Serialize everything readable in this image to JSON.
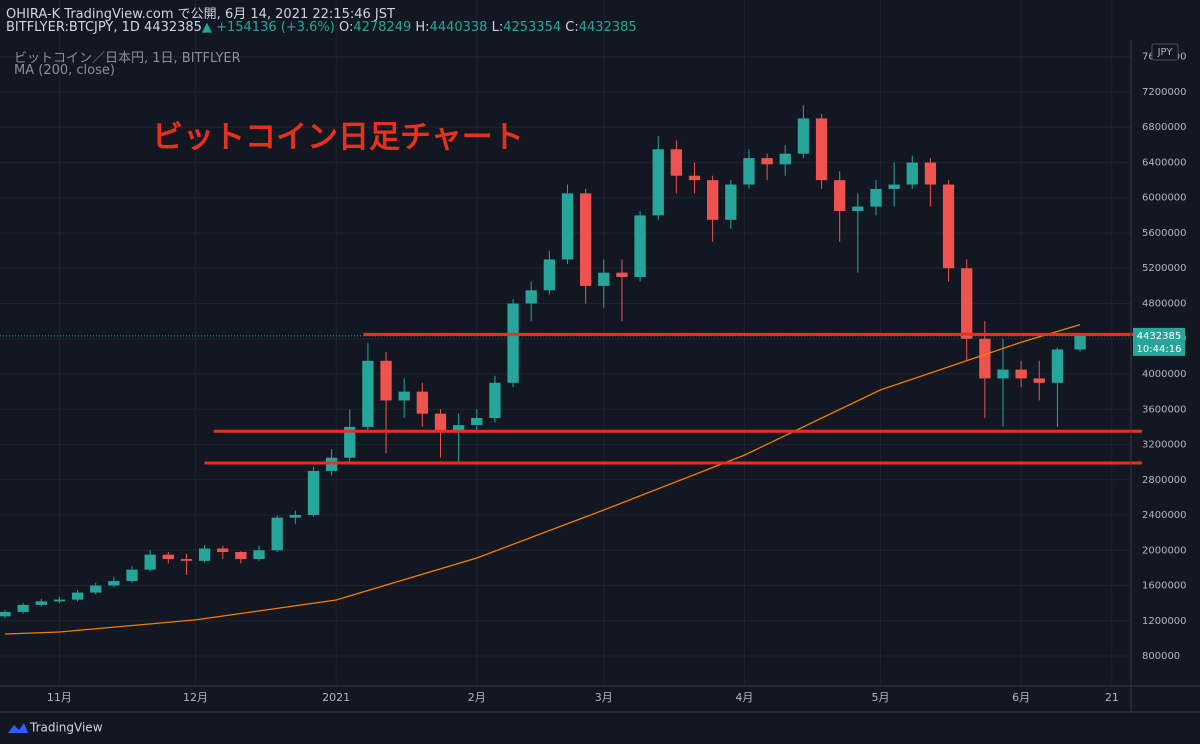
{
  "header": {
    "publisher": "OHIRA-K TradingView.com で公開, 6月 14, 2021 22:15:46 JST",
    "symbol": "BITFLYER:BTCJPY, 1D",
    "arrow": "▲",
    "change": "+154136 (+3.6%)",
    "ohlc_labels": [
      "O:",
      "H:",
      "L:",
      "C:"
    ]
  },
  "chart_data": {
    "type": "candlestick",
    "subtitle": "ビットコイン／日本円, 1日, BITFLYER",
    "annotation": "ビットコイン日足チャート",
    "currency": "JPY",
    "countdown": "10:44:16",
    "x": [
      "2020-10-20",
      "2020-10-24",
      "2020-10-28",
      "2020-11-01",
      "2020-11-05",
      "2020-11-09",
      "2020-11-13",
      "2020-11-17",
      "2020-11-21",
      "2020-11-25",
      "2020-11-29",
      "2020-12-03",
      "2020-12-07",
      "2020-12-11",
      "2020-12-15",
      "2020-12-19",
      "2020-12-23",
      "2020-12-27",
      "2020-12-31",
      "2021-01-04",
      "2021-01-08",
      "2021-01-12",
      "2021-01-16",
      "2021-01-20",
      "2021-01-24",
      "2021-01-28",
      "2021-02-01",
      "2021-02-05",
      "2021-02-09",
      "2021-02-13",
      "2021-02-17",
      "2021-02-21",
      "2021-02-25",
      "2021-03-01",
      "2021-03-05",
      "2021-03-09",
      "2021-03-13",
      "2021-03-17",
      "2021-03-21",
      "2021-03-25",
      "2021-03-29",
      "2021-04-02",
      "2021-04-06",
      "2021-04-10",
      "2021-04-14",
      "2021-04-18",
      "2021-04-22",
      "2021-04-26",
      "2021-04-30",
      "2021-05-04",
      "2021-05-08",
      "2021-05-12",
      "2021-05-16",
      "2021-05-20",
      "2021-05-24",
      "2021-05-28",
      "2021-06-01",
      "2021-06-05",
      "2021-06-09",
      "2021-06-14"
    ],
    "open": [
      1250000,
      1300000,
      1380000,
      1420000,
      1440000,
      1520000,
      1600000,
      1650000,
      1780000,
      1950000,
      1900000,
      1880000,
      2020000,
      1980000,
      1900000,
      2000000,
      2370000,
      2400000,
      2900000,
      3050000,
      3400000,
      4150000,
      3700000,
      3800000,
      3550000,
      3350000,
      3420000,
      3500000,
      3900000,
      4800000,
      4950000,
      5300000,
      6050000,
      5000000,
      5150000,
      5100000,
      5800000,
      6550000,
      6250000,
      6200000,
      5750000,
      6150000,
      6450000,
      6380000,
      6500000,
      6900000,
      6200000,
      5850000,
      5900000,
      6100000,
      6150000,
      6400000,
      6150000,
      5200000,
      4400000,
      3950000,
      4050000,
      3950000,
      3900000,
      4278249
    ],
    "high": [
      1320000,
      1400000,
      1450000,
      1470000,
      1550000,
      1630000,
      1700000,
      1820000,
      2000000,
      1980000,
      1960000,
      2060000,
      2050000,
      1990000,
      2050000,
      2400000,
      2450000,
      2950000,
      3150000,
      3600000,
      4350000,
      4250000,
      3950000,
      3900000,
      3600000,
      3550000,
      3600000,
      3980000,
      4850000,
      5050000,
      5400000,
      6150000,
      6100000,
      5300000,
      5300000,
      5850000,
      6700000,
      6650000,
      6400000,
      6250000,
      6200000,
      6550000,
      6500000,
      6600000,
      7050000,
      6950000,
      6300000,
      6050000,
      6200000,
      6400000,
      6480000,
      6450000,
      6200000,
      5300000,
      4600000,
      4400000,
      4150000,
      4150000,
      4300000,
      4440338
    ],
    "low": [
      1230000,
      1280000,
      1360000,
      1400000,
      1420000,
      1500000,
      1580000,
      1630000,
      1760000,
      1850000,
      1720000,
      1860000,
      1900000,
      1850000,
      1880000,
      1980000,
      2300000,
      2380000,
      2850000,
      3000000,
      3350000,
      3100000,
      3500000,
      3400000,
      3050000,
      3000000,
      3350000,
      3450000,
      3850000,
      4600000,
      4900000,
      5250000,
      4800000,
      4750000,
      4600000,
      5050000,
      5750000,
      6050000,
      6050000,
      5500000,
      5650000,
      6100000,
      6200000,
      6250000,
      6450000,
      6100000,
      5500000,
      5150000,
      5800000,
      5900000,
      6100000,
      5900000,
      5050000,
      4150000,
      3500000,
      3400000,
      3850000,
      3700000,
      3400000,
      4253354
    ],
    "close": [
      1300000,
      1380000,
      1420000,
      1440000,
      1520000,
      1600000,
      1650000,
      1780000,
      1950000,
      1900000,
      1880000,
      2020000,
      1980000,
      1900000,
      2000000,
      2370000,
      2400000,
      2900000,
      3050000,
      3400000,
      4150000,
      3700000,
      3800000,
      3550000,
      3350000,
      3420000,
      3500000,
      3900000,
      4800000,
      4950000,
      5300000,
      6050000,
      5000000,
      5150000,
      5100000,
      5800000,
      6550000,
      6250000,
      6200000,
      5750000,
      6150000,
      6450000,
      6380000,
      6500000,
      6900000,
      6200000,
      5850000,
      5900000,
      6100000,
      6150000,
      6400000,
      6150000,
      5200000,
      4400000,
      3950000,
      4050000,
      3950000,
      3900000,
      4278249,
      4432385
    ],
    "up_color": "#26a69a",
    "down_color": "#ef5350",
    "ma": {
      "name": "MA (200, close)",
      "color": "#f57c00",
      "x": [
        "2020-10-20",
        "2020-11-01",
        "2020-12-01",
        "2021-01-01",
        "2021-02-01",
        "2021-03-01",
        "2021-04-01",
        "2021-05-01",
        "2021-06-01",
        "2021-06-14"
      ],
      "values": [
        1050000,
        1072000,
        1210000,
        1435000,
        1912000,
        2457000,
        3080000,
        3820000,
        4360000,
        4560000
      ]
    },
    "hlines": [
      {
        "value": 4450000,
        "from": "2021-01-07"
      },
      {
        "value": 3350000,
        "from": "2020-12-05"
      },
      {
        "value": 2990000,
        "from": "2020-12-03"
      }
    ],
    "hline_color": "#e8301f",
    "xlim": [
      "2020-10-20",
      "2021-06-25"
    ],
    "xticks": [
      {
        "value": "2020-11-01",
        "label": "11月"
      },
      {
        "value": "2020-12-01",
        "label": "12月"
      },
      {
        "value": "2021-01-01",
        "label": "2021"
      },
      {
        "value": "2021-02-01",
        "label": "2月"
      },
      {
        "value": "2021-03-01",
        "label": "3月"
      },
      {
        "value": "2021-04-01",
        "label": "4月"
      },
      {
        "value": "2021-05-01",
        "label": "5月"
      },
      {
        "value": "2021-06-01",
        "label": "6月"
      },
      {
        "value": "2021-06-21",
        "label": "21"
      }
    ],
    "ylim": [
      471000,
      7790000
    ],
    "yticks": [
      800000,
      1200000,
      1600000,
      2000000,
      2400000,
      2800000,
      3200000,
      3600000,
      4000000,
      4400000,
      4800000,
      5200000,
      5600000,
      6000000,
      6400000,
      6800000,
      7200000,
      7600000
    ],
    "grid": true
  },
  "footer": {
    "brand": "TradingView"
  }
}
